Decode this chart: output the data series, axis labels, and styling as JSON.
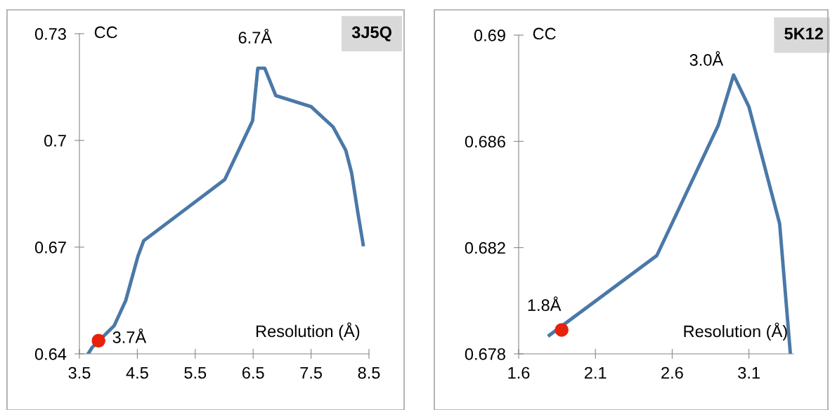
{
  "chart_data": [
    {
      "type": "line",
      "title": "3J5Q",
      "xlabel": "Resolution (Å)",
      "ylabel": "CC",
      "xlim": [
        3.5,
        8.5
      ],
      "xticks": [
        3.5,
        4.5,
        5.5,
        6.5,
        7.5,
        8.5
      ],
      "ylim": [
        0.64,
        0.73
      ],
      "yticks": [
        0.64,
        0.67,
        0.7,
        0.73
      ],
      "grid": false,
      "legend": false,
      "series": [
        {
          "color": "#4a78a8",
          "x": [
            3.65,
            3.72,
            4.1,
            4.3,
            4.51,
            4.61,
            6.01,
            6.49,
            6.58,
            6.7,
            6.89,
            7.5,
            7.88,
            8.1,
            8.2,
            8.31,
            8.4
          ],
          "values": [
            0.64,
            0.6418,
            0.6479,
            0.655,
            0.6674,
            0.6718,
            0.689,
            0.7055,
            0.7203,
            0.7203,
            0.7126,
            0.7095,
            0.7038,
            0.6972,
            0.6909,
            0.6795,
            0.6707
          ]
        },
        {
          "type": "scatter",
          "color": "#e8210b",
          "marker": "circle",
          "x": [
            3.83
          ],
          "values": [
            0.6437
          ]
        }
      ],
      "annotations": [
        {
          "text": "6.7Å",
          "x": 6.7,
          "y": 0.7203
        },
        {
          "text": "3.7Å",
          "x": 3.83,
          "y": 0.6437
        }
      ]
    },
    {
      "type": "line",
      "title": "5K12",
      "xlabel": "Resolution (Å)",
      "ylabel": "CC",
      "xlim": [
        1.6,
        3.39
      ],
      "xticks": [
        1.6,
        2.1,
        2.6,
        3.1
      ],
      "ylim": [
        0.678,
        0.69
      ],
      "yticks": [
        0.678,
        0.682,
        0.686,
        0.69
      ],
      "grid": false,
      "legend": false,
      "series": [
        {
          "color": "#4a78a8",
          "x": [
            1.8,
            2.5,
            2.9,
            3.0,
            3.1,
            3.3,
            3.37
          ],
          "values": [
            0.6787,
            0.6817,
            0.6866,
            0.6885,
            0.6873,
            0.6829,
            0.678
          ]
        },
        {
          "type": "scatter",
          "color": "#e8210b",
          "marker": "circle",
          "x": [
            1.88
          ],
          "values": [
            0.6789
          ]
        }
      ],
      "annotations": [
        {
          "text": "3.0Å",
          "x": 3.0,
          "y": 0.6885
        },
        {
          "text": "1.8Å",
          "x": 1.88,
          "y": 0.6789
        }
      ]
    }
  ]
}
